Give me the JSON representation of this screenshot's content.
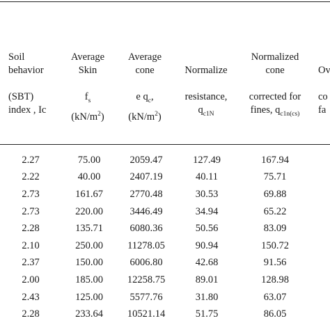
{
  "headers": {
    "c1": {
      "l1": "Soil",
      "l2": "behavior",
      "l3": "(SBT)",
      "l4": "index , Ic"
    },
    "c2": {
      "l1": "Average",
      "l2": "Skin",
      "l3": "f",
      "l3sub": "s",
      "l4a": "(kN/m",
      "l4sup": "2",
      "l4b": ")"
    },
    "c3": {
      "l1": "Average",
      "l2": "cone",
      "l3a": "e q",
      "l3sub": "c",
      "l3b": ",",
      "l4a": "(kN/m",
      "l4sup": "2",
      "l4b": ")"
    },
    "c4": {
      "l1": "Normalize",
      "l3": "resistance,",
      "l4a": "q",
      "l4sub": "c1N"
    },
    "c5": {
      "l1": "Normalized",
      "l2": "cone",
      "l3": "corrected for",
      "l4a": "fines, q",
      "l4sub": "c1n(cs)"
    },
    "c6": {
      "l1": "Ov",
      "l3": "co",
      "l4": "fa"
    }
  },
  "rows": [
    [
      "2.27",
      "75.00",
      "2059.47",
      "127.49",
      "167.94"
    ],
    [
      "2.22",
      "40.00",
      "2407.19",
      "40.11",
      "75.71"
    ],
    [
      "2.73",
      "161.67",
      "2770.48",
      "30.53",
      "69.88"
    ],
    [
      "2.73",
      "220.00",
      "3446.49",
      "34.94",
      "65.22"
    ],
    [
      "2.28",
      "135.71",
      "6080.36",
      "50.56",
      "83.09"
    ],
    [
      "2.10",
      "250.00",
      "11278.05",
      "90.94",
      "150.72"
    ],
    [
      "2.37",
      "150.00",
      "6006.80",
      "42.68",
      "91.56"
    ],
    [
      "2.00",
      "185.00",
      "12258.75",
      "89.01",
      "128.98"
    ],
    [
      "2.43",
      "125.00",
      "5577.76",
      "31.80",
      "63.07"
    ],
    [
      "2.28",
      "233.64",
      "10521.14",
      "51.75",
      "86.05"
    ]
  ]
}
